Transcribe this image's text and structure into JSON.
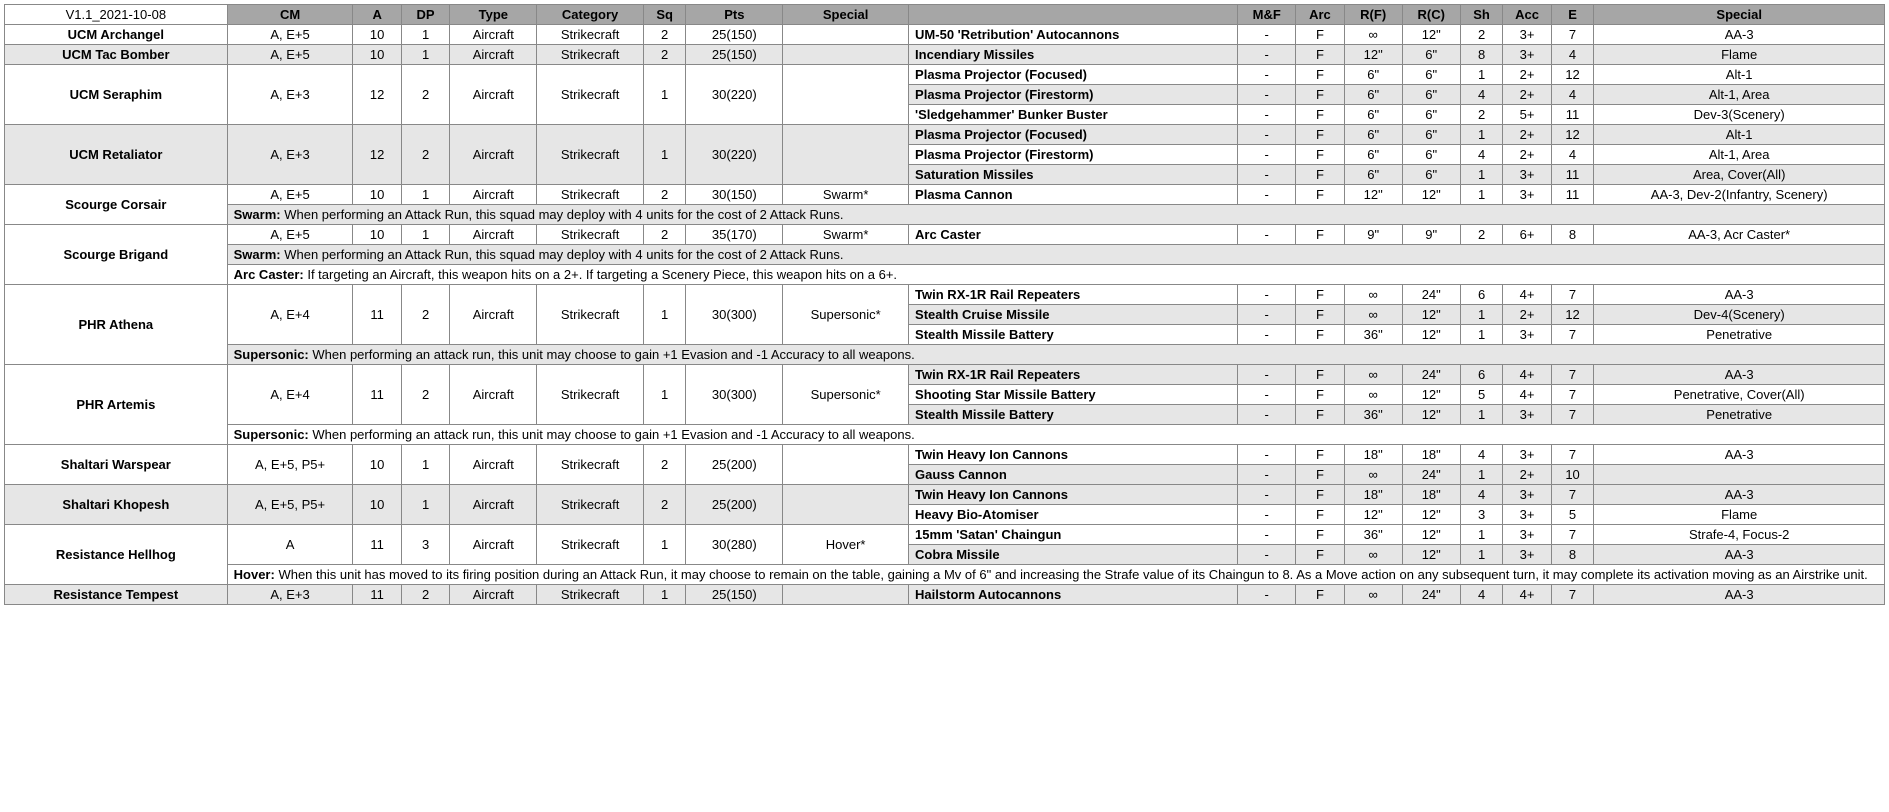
{
  "version": "V1.1_2021-10-08",
  "headers": {
    "left": [
      "CM",
      "A",
      "DP",
      "Type",
      "Category",
      "Sq",
      "Pts",
      "Special"
    ],
    "right": [
      "M&F",
      "Arc",
      "R(F)",
      "R(C)",
      "Sh",
      "Acc",
      "E",
      "Special"
    ]
  },
  "units": [
    {
      "name": "UCM Archangel",
      "stats": [
        "A, E+5",
        "10",
        "1",
        "Aircraft",
        "Strikecraft",
        "2",
        "25(150)",
        ""
      ],
      "alt": false,
      "weapons": [
        {
          "name": "UM-50 'Retribution' Autocannons",
          "vals": [
            "-",
            "F",
            "∞",
            "12\"",
            "2",
            "3+",
            "7",
            "AA-3"
          ],
          "alt": false
        }
      ]
    },
    {
      "name": "UCM Tac Bomber",
      "stats": [
        "A, E+5",
        "10",
        "1",
        "Aircraft",
        "Strikecraft",
        "2",
        "25(150)",
        ""
      ],
      "alt": true,
      "weapons": [
        {
          "name": "Incendiary Missiles",
          "vals": [
            "-",
            "F",
            "12\"",
            "6\"",
            "8",
            "3+",
            "4",
            "Flame"
          ],
          "alt": true
        }
      ]
    },
    {
      "name": "UCM Seraphim",
      "stats": [
        "A, E+3",
        "12",
        "2",
        "Aircraft",
        "Strikecraft",
        "1",
        "30(220)",
        ""
      ],
      "alt": false,
      "weapons": [
        {
          "name": "Plasma Projector (Focused)",
          "vals": [
            "-",
            "F",
            "6\"",
            "6\"",
            "1",
            "2+",
            "12",
            "Alt-1"
          ],
          "alt": false
        },
        {
          "name": "Plasma Projector (Firestorm)",
          "vals": [
            "-",
            "F",
            "6\"",
            "6\"",
            "4",
            "2+",
            "4",
            "Alt-1, Area"
          ],
          "alt": true
        },
        {
          "name": "'Sledgehammer' Bunker Buster",
          "vals": [
            "-",
            "F",
            "6\"",
            "6\"",
            "2",
            "5+",
            "11",
            "Dev-3(Scenery)"
          ],
          "alt": false
        }
      ]
    },
    {
      "name": "UCM Retaliator",
      "stats": [
        "A, E+3",
        "12",
        "2",
        "Aircraft",
        "Strikecraft",
        "1",
        "30(220)",
        ""
      ],
      "alt": true,
      "weapons": [
        {
          "name": "Plasma Projector (Focused)",
          "vals": [
            "-",
            "F",
            "6\"",
            "6\"",
            "1",
            "2+",
            "12",
            "Alt-1"
          ],
          "alt": true
        },
        {
          "name": "Plasma Projector (Firestorm)",
          "vals": [
            "-",
            "F",
            "6\"",
            "6\"",
            "4",
            "2+",
            "4",
            "Alt-1, Area"
          ],
          "alt": false
        },
        {
          "name": "Saturation Missiles",
          "vals": [
            "-",
            "F",
            "6\"",
            "6\"",
            "1",
            "3+",
            "11",
            "Area, Cover(All)"
          ],
          "alt": true
        }
      ]
    },
    {
      "name": "Scourge Corsair",
      "stats": [
        "A, E+5",
        "10",
        "1",
        "Aircraft",
        "Strikecraft",
        "2",
        "30(150)",
        "Swarm*"
      ],
      "alt": false,
      "weapons": [
        {
          "name": "Plasma Cannon",
          "vals": [
            "-",
            "F",
            "12\"",
            "12\"",
            "1",
            "3+",
            "11",
            "AA-3, Dev-2(Infantry, Scenery)"
          ],
          "alt": false
        }
      ],
      "notes": [
        {
          "label": "Swarm:",
          "text": " When performing an Attack Run, this squad may deploy with 4 units for the cost of 2 Attack Runs.",
          "alt": true
        }
      ]
    },
    {
      "name": "Scourge Brigand",
      "stats": [
        "A, E+5",
        "10",
        "1",
        "Aircraft",
        "Strikecraft",
        "2",
        "35(170)",
        "Swarm*"
      ],
      "alt": false,
      "weapons": [
        {
          "name": "Arc Caster",
          "vals": [
            "-",
            "F",
            "9\"",
            "9\"",
            "2",
            "6+",
            "8",
            "AA-3, Acr Caster*"
          ],
          "alt": false
        }
      ],
      "notes": [
        {
          "label": "Swarm:",
          "text": " When performing an Attack Run, this squad may deploy with 4 units for the cost of 2 Attack Runs.",
          "alt": true
        },
        {
          "label": "Arc Caster:",
          "text": " If targeting an Aircraft, this weapon hits on a 2+. If targeting a Scenery Piece, this weapon hits on a 6+.",
          "alt": false
        }
      ],
      "noteSpansName": false
    },
    {
      "name": "PHR Athena",
      "stats": [
        "A, E+4",
        "11",
        "2",
        "Aircraft",
        "Strikecraft",
        "1",
        "30(300)",
        "Supersonic*"
      ],
      "alt": false,
      "weapons": [
        {
          "name": "Twin RX-1R Rail Repeaters",
          "vals": [
            "-",
            "F",
            "∞",
            "24\"",
            "6",
            "4+",
            "7",
            "AA-3"
          ],
          "alt": false
        },
        {
          "name": "Stealth Cruise Missile",
          "vals": [
            "-",
            "F",
            "∞",
            "12\"",
            "1",
            "2+",
            "12",
            "Dev-4(Scenery)"
          ],
          "alt": true
        },
        {
          "name": "Stealth Missile Battery",
          "vals": [
            "-",
            "F",
            "36\"",
            "12\"",
            "1",
            "3+",
            "7",
            "Penetrative"
          ],
          "alt": false
        }
      ],
      "notes": [
        {
          "label": "Supersonic:",
          "text": " When performing an attack run, this unit may choose to gain +1 Evasion and -1 Accuracy to all weapons.",
          "alt": true
        }
      ]
    },
    {
      "name": "PHR Artemis",
      "stats": [
        "A, E+4",
        "11",
        "2",
        "Aircraft",
        "Strikecraft",
        "1",
        "30(300)",
        "Supersonic*"
      ],
      "alt": false,
      "weapons": [
        {
          "name": "Twin RX-1R Rail Repeaters",
          "vals": [
            "-",
            "F",
            "∞",
            "24\"",
            "6",
            "4+",
            "7",
            "AA-3"
          ],
          "alt": true
        },
        {
          "name": "Shooting Star Missile Battery",
          "vals": [
            "-",
            "F",
            "∞",
            "12\"",
            "5",
            "4+",
            "7",
            "Penetrative, Cover(All)"
          ],
          "alt": false
        },
        {
          "name": "Stealth Missile Battery",
          "vals": [
            "-",
            "F",
            "36\"",
            "12\"",
            "1",
            "3+",
            "7",
            "Penetrative"
          ],
          "alt": true
        }
      ],
      "notes": [
        {
          "label": "Supersonic:",
          "text": " When performing an attack run, this unit may choose to gain +1 Evasion and -1 Accuracy to all weapons.",
          "alt": false
        }
      ]
    },
    {
      "name": "Shaltari Warspear",
      "stats": [
        "A, E+5, P5+",
        "10",
        "1",
        "Aircraft",
        "Strikecraft",
        "2",
        "25(200)",
        ""
      ],
      "alt": false,
      "weapons": [
        {
          "name": "Twin Heavy Ion Cannons",
          "vals": [
            "-",
            "F",
            "18\"",
            "18\"",
            "4",
            "3+",
            "7",
            "AA-3"
          ],
          "alt": false
        },
        {
          "name": "Gauss Cannon",
          "vals": [
            "-",
            "F",
            "∞",
            "24\"",
            "1",
            "2+",
            "10",
            ""
          ],
          "alt": true
        }
      ]
    },
    {
      "name": "Shaltari Khopesh",
      "stats": [
        "A, E+5, P5+",
        "10",
        "1",
        "Aircraft",
        "Strikecraft",
        "2",
        "25(200)",
        ""
      ],
      "alt": true,
      "weapons": [
        {
          "name": "Twin Heavy Ion Cannons",
          "vals": [
            "-",
            "F",
            "18\"",
            "18\"",
            "4",
            "3+",
            "7",
            "AA-3"
          ],
          "alt": true
        },
        {
          "name": "Heavy Bio-Atomiser",
          "vals": [
            "-",
            "F",
            "12\"",
            "12\"",
            "3",
            "3+",
            "5",
            "Flame"
          ],
          "alt": false
        }
      ]
    },
    {
      "name": "Resistance Hellhog",
      "stats": [
        "A",
        "11",
        "3",
        "Aircraft",
        "Strikecraft",
        "1",
        "30(280)",
        "Hover*"
      ],
      "alt": false,
      "weapons": [
        {
          "name": "15mm 'Satan' Chaingun",
          "vals": [
            "-",
            "F",
            "36\"",
            "12\"",
            "1",
            "3+",
            "7",
            "Strafe-4, Focus-2"
          ],
          "alt": false
        },
        {
          "name": "Cobra Missile",
          "vals": [
            "-",
            "F",
            "∞",
            "12\"",
            "1",
            "3+",
            "8",
            "AA-3"
          ],
          "alt": true
        }
      ],
      "notes": [
        {
          "label": "Hover:",
          "text": " When this unit has moved to its firing position during an Attack Run, it may choose to remain on the table, gaining a Mv of 6\" and increasing the Strafe value of its Chaingun to 8. As a Move action on any subsequent turn, it may complete its activation moving as an Airstrike unit.",
          "alt": false
        }
      ]
    },
    {
      "name": "Resistance Tempest",
      "stats": [
        "A, E+3",
        "11",
        "2",
        "Aircraft",
        "Strikecraft",
        "1",
        "25(150)",
        ""
      ],
      "alt": true,
      "weapons": [
        {
          "name": "Hailstorm Autocannons",
          "vals": [
            "-",
            "F",
            "∞",
            "24\"",
            "4",
            "4+",
            "7",
            "AA-3"
          ],
          "alt": true
        }
      ]
    }
  ]
}
